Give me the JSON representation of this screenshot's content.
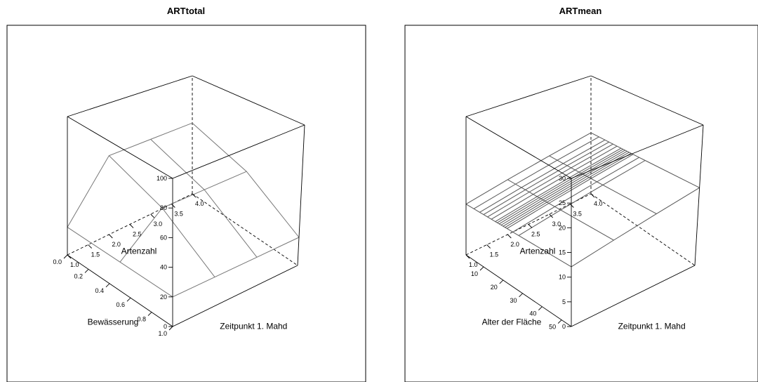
{
  "colors": {
    "box": "#000000",
    "surface": "#777777"
  },
  "chart_data": [
    {
      "type": "surface",
      "title": "ARTtotal",
      "xlabel": "Zeitpunkt 1. Mahd",
      "ylabel": "Bewässerung",
      "zlabel": "Artenzahl",
      "xlim": [
        1.0,
        4.0
      ],
      "ylim": [
        0.0,
        1.0
      ],
      "zlim": [
        0,
        100
      ],
      "xticks": [
        "1.0",
        "1.5",
        "2.0",
        "2.5",
        "3.0",
        "3.5",
        "4.0"
      ],
      "yticks": [
        "0.0",
        "0.2",
        "0.4",
        "0.6",
        "0.8",
        "1.0"
      ],
      "zticks": [
        "0",
        "20",
        "40",
        "60",
        "80",
        "100"
      ],
      "grid_x": [
        1.0,
        2.0,
        3.0,
        4.0
      ],
      "grid_y": [
        0.0,
        0.5,
        1.0
      ],
      "z": [
        [
          20,
          60,
          60,
          60
        ],
        [
          20,
          45,
          45,
          45
        ],
        [
          20,
          20,
          20,
          20
        ]
      ]
    },
    {
      "type": "surface",
      "title": "ARTmean",
      "xlabel": "Zeitpunkt 1. Mahd",
      "ylabel": "Alter der Fläche",
      "zlabel": "Artenzahl",
      "xlim": [
        1.0,
        4.0
      ],
      "ylim": [
        1,
        55
      ],
      "zlim": [
        0,
        30
      ],
      "xticks": [
        "1.0",
        "1.5",
        "2.0",
        "2.5",
        "3.0",
        "3.5",
        "4.0"
      ],
      "yticks": [
        "10",
        "20",
        "30",
        "40",
        "50"
      ],
      "zticks": [
        "0",
        "5",
        "10",
        "15",
        "20",
        "25",
        "30"
      ],
      "grid_x": [
        1.0,
        2.0,
        3.0,
        4.0
      ],
      "grid_y": [
        1,
        5,
        8,
        10,
        12,
        14,
        16,
        17,
        18,
        19,
        20,
        21,
        22,
        25,
        28,
        55
      ],
      "z_model": {
        "intercept": 9.5,
        "slope_x": 1.5,
        "slope_y": 0.02
      }
    }
  ]
}
